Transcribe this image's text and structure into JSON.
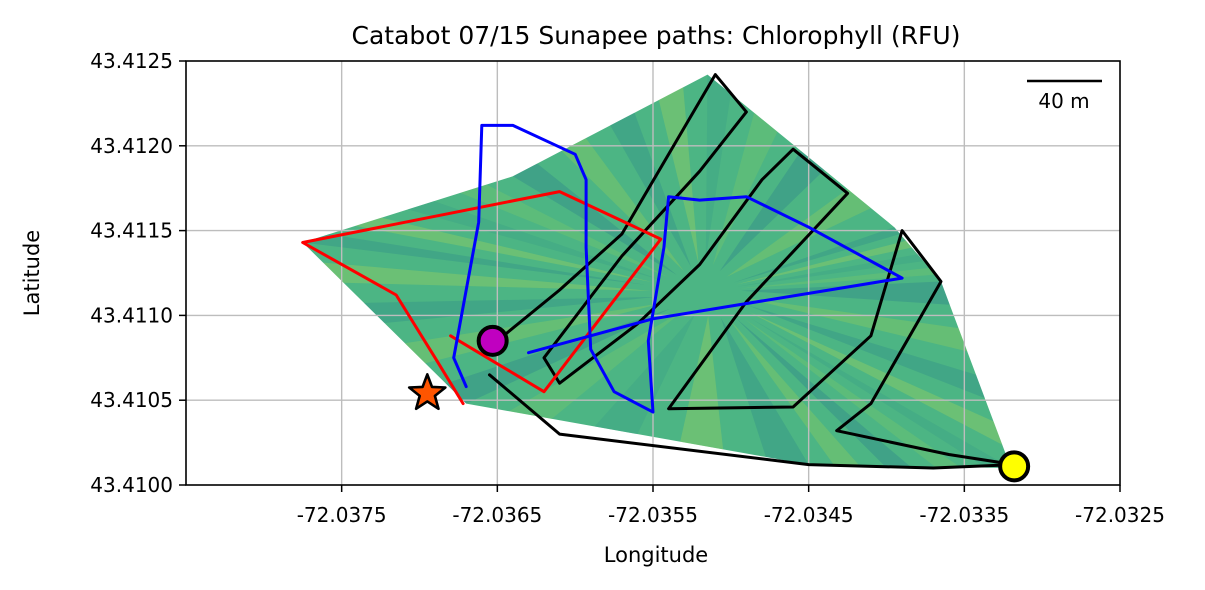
{
  "chart_data": {
    "type": "map-path",
    "title": "Catabot 07/15 Sunapee paths: Chlorophyll (RFU)",
    "xlabel": "Longitude",
    "ylabel": "Latitude",
    "xlim": [
      -72.0385,
      -72.0325
    ],
    "ylim": [
      43.41,
      43.4125
    ],
    "x_ticks": [
      -72.0375,
      -72.0365,
      -72.0355,
      -72.0345,
      -72.0335,
      -72.0325
    ],
    "x_tick_labels": [
      "-72.0375",
      "-72.0365",
      "-72.0355",
      "-72.0345",
      "-72.0335",
      "-72.0325"
    ],
    "y_ticks": [
      43.41,
      43.4105,
      43.411,
      43.4115,
      43.412,
      43.4125
    ],
    "y_tick_labels": [
      "43.4100",
      "43.4105",
      "43.4110",
      "43.4115",
      "43.4120",
      "43.4125"
    ],
    "grid": true,
    "scale_bar": {
      "label": "40 m",
      "position": "top-right"
    },
    "colors": {
      "field_base": "#4cb584",
      "field_low": "#2f8a8a",
      "field_high": "#a5d45a",
      "red_path": "#ff0000",
      "blue_path": "#0000ff",
      "black_path": "#000000",
      "start_marker": "#ff5500",
      "magenta_marker": "#c000c0",
      "yellow_marker": "#ffff00"
    },
    "coverage_hull": [
      [
        -72.03775,
        43.41143
      ],
      [
        -72.0364,
        43.41182
      ],
      [
        -72.03515,
        43.41242
      ],
      [
        -72.03395,
        43.41152
      ],
      [
        -72.03365,
        43.4112
      ],
      [
        -72.0332,
        43.4101
      ],
      [
        -72.0345,
        43.41012
      ],
      [
        -72.0367,
        43.41048
      ]
    ],
    "series": [
      {
        "color": "red",
        "points": [
          [
            -72.03672,
            43.41048
          ],
          [
            -72.0369,
            43.41075
          ],
          [
            -72.03715,
            43.41112
          ],
          [
            -72.03775,
            43.41143
          ],
          [
            -72.0361,
            43.41173
          ],
          [
            -72.03545,
            43.41145
          ],
          [
            -72.0362,
            43.41055
          ],
          [
            -72.0368,
            43.41088
          ]
        ]
      },
      {
        "color": "blue",
        "points": [
          [
            -72.0367,
            43.41058
          ],
          [
            -72.03678,
            43.41075
          ],
          [
            -72.03672,
            43.41105
          ],
          [
            -72.03662,
            43.41155
          ],
          [
            -72.0366,
            43.41212
          ],
          [
            -72.0364,
            43.41212
          ],
          [
            -72.036,
            43.41195
          ],
          [
            -72.03593,
            43.4118
          ],
          [
            -72.03593,
            43.4114
          ],
          [
            -72.0359,
            43.4108
          ],
          [
            -72.03575,
            43.41055
          ],
          [
            -72.0355,
            43.41043
          ],
          [
            -72.03553,
            43.41085
          ],
          [
            -72.03543,
            43.4114
          ],
          [
            -72.0354,
            43.4117
          ],
          [
            -72.0352,
            43.41168
          ],
          [
            -72.0349,
            43.4117
          ],
          [
            -72.0345,
            43.41152
          ],
          [
            -72.0339,
            43.41122
          ],
          [
            -72.0355,
            43.41098
          ],
          [
            -72.0363,
            43.41078
          ]
        ]
      },
      {
        "color": "black",
        "points": [
          [
            -72.0365,
            43.41085
          ],
          [
            -72.0361,
            43.41115
          ],
          [
            -72.0357,
            43.41148
          ],
          [
            -72.0351,
            43.41242
          ],
          [
            -72.0349,
            43.4122
          ],
          [
            -72.0352,
            43.41185
          ],
          [
            -72.0357,
            43.41135
          ],
          [
            -72.0362,
            43.41075
          ],
          [
            -72.0361,
            43.4106
          ],
          [
            -72.0356,
            43.41095
          ],
          [
            -72.0352,
            43.4113
          ],
          [
            -72.0348,
            43.4118
          ],
          [
            -72.0346,
            43.41198
          ],
          [
            -72.03425,
            43.41172
          ],
          [
            -72.0349,
            43.41108
          ],
          [
            -72.0354,
            43.41045
          ],
          [
            -72.0346,
            43.41046
          ],
          [
            -72.0341,
            43.41088
          ],
          [
            -72.0339,
            43.4115
          ],
          [
            -72.03365,
            43.4112
          ],
          [
            -72.0341,
            43.41048
          ],
          [
            -72.03432,
            43.41032
          ],
          [
            -72.0336,
            43.41018
          ],
          [
            -72.03318,
            43.41012
          ],
          [
            -72.0337,
            43.4101
          ],
          [
            -72.0345,
            43.41012
          ],
          [
            -72.0361,
            43.4103
          ],
          [
            -72.03655,
            43.41065
          ]
        ]
      }
    ],
    "markers": [
      {
        "name": "start",
        "shape": "star",
        "x": -72.03695,
        "y": 43.41054,
        "color": "#ff5500"
      },
      {
        "name": "magenta",
        "shape": "circle",
        "x": -72.03653,
        "y": 43.41085,
        "color": "#c000c0"
      },
      {
        "name": "yellow",
        "shape": "circle",
        "x": -72.03318,
        "y": 43.41011,
        "color": "#ffff00"
      }
    ]
  }
}
